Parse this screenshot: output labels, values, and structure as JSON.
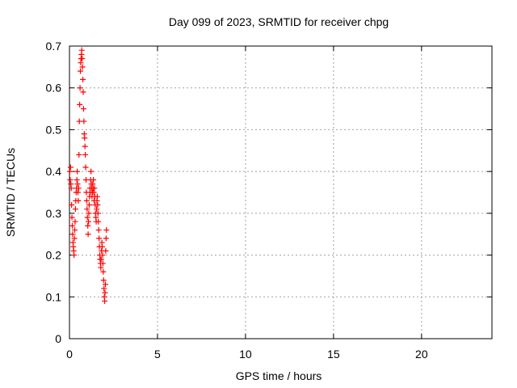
{
  "chart_data": {
    "type": "scatter",
    "title": "Day 099 of 2023, SRMTID for receiver chpg",
    "xlabel": "GPS time / hours",
    "ylabel": "SRMTID / TECUs",
    "xlim": [
      0,
      24
    ],
    "ylim": [
      0,
      0.7
    ],
    "x_ticks": [
      0,
      5,
      10,
      15,
      20
    ],
    "x_tick_labels": [
      "0",
      "5",
      "10",
      "15",
      "20"
    ],
    "y_ticks": [
      0,
      0.1,
      0.2,
      0.3,
      0.4,
      0.5,
      0.6,
      0.7
    ],
    "y_tick_labels": [
      "0",
      "0.1",
      "0.2",
      "0.3",
      "0.4",
      "0.5",
      "0.6",
      "0.7"
    ],
    "grid": true,
    "marker": "+",
    "color": "#ff0000",
    "series": [
      {
        "x": [
          0.02,
          0.04,
          0.06,
          0.08,
          0.1,
          0.12,
          0.14,
          0.16,
          0.18,
          0.2,
          0.22,
          0.24,
          0.26,
          0.28,
          0.3,
          0.32,
          0.34,
          0.36,
          0.38,
          0.4,
          0.42,
          0.44,
          0.46,
          0.48,
          0.5,
          0.52,
          0.54,
          0.56,
          0.58,
          0.6,
          0.62,
          0.64,
          0.66,
          0.68,
          0.7,
          0.72,
          0.74,
          0.76,
          0.78,
          0.8,
          0.82,
          0.84,
          0.86,
          0.88,
          0.9,
          0.92,
          0.94,
          0.96,
          0.98,
          1.0,
          1.02,
          1.04,
          1.06,
          1.08,
          1.1,
          1.12,
          1.14,
          1.16,
          1.18,
          1.2,
          1.22,
          1.24,
          1.26,
          1.28,
          1.3,
          1.32,
          1.34,
          1.36,
          1.38,
          1.4,
          1.42,
          1.44,
          1.46,
          1.48,
          1.5,
          1.52,
          1.54,
          1.56,
          1.58,
          1.6,
          1.62,
          1.64,
          1.66,
          1.68,
          1.7,
          1.72,
          1.74,
          1.76,
          1.78,
          1.8,
          1.82,
          1.84,
          1.86,
          1.88,
          1.9,
          1.92,
          1.94,
          1.96,
          1.98,
          2.0,
          2.02,
          2.04,
          2.06,
          2.08,
          2.1
        ],
        "y": [
          0.4,
          0.38,
          0.41,
          0.37,
          0.36,
          0.32,
          0.29,
          0.27,
          0.25,
          0.23,
          0.22,
          0.21,
          0.2,
          0.24,
          0.26,
          0.28,
          0.31,
          0.33,
          0.35,
          0.36,
          0.38,
          0.4,
          0.37,
          0.35,
          0.33,
          0.36,
          0.44,
          0.52,
          0.56,
          0.6,
          0.64,
          0.66,
          0.67,
          0.68,
          0.69,
          0.67,
          0.65,
          0.62,
          0.59,
          0.55,
          0.52,
          0.49,
          0.48,
          0.46,
          0.44,
          0.41,
          0.38,
          0.35,
          0.33,
          0.31,
          0.29,
          0.27,
          0.25,
          0.28,
          0.3,
          0.32,
          0.34,
          0.36,
          0.35,
          0.38,
          0.4,
          0.37,
          0.36,
          0.34,
          0.35,
          0.37,
          0.36,
          0.38,
          0.35,
          0.33,
          0.36,
          0.34,
          0.32,
          0.3,
          0.29,
          0.28,
          0.31,
          0.33,
          0.34,
          0.32,
          0.3,
          0.28,
          0.26,
          0.24,
          0.22,
          0.2,
          0.19,
          0.18,
          0.17,
          0.19,
          0.21,
          0.23,
          0.22,
          0.2,
          0.18,
          0.16,
          0.14,
          0.12,
          0.1,
          0.09,
          0.11,
          0.13,
          0.21,
          0.24,
          0.26
        ]
      }
    ]
  }
}
